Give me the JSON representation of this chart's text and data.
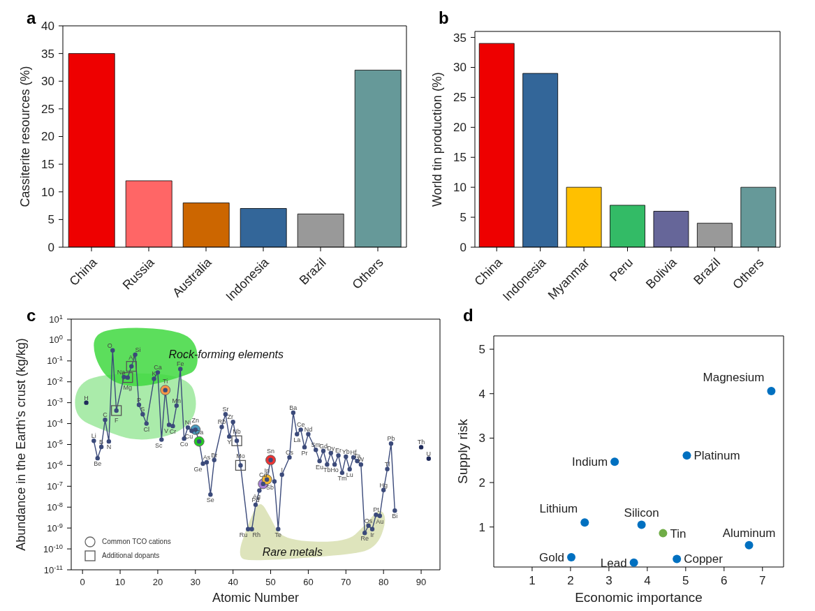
{
  "chart_data": [
    {
      "type": "bar",
      "title": "a",
      "ylabel": "Cassiterite resources (%)",
      "categories": [
        "China",
        "Russia",
        "Australia",
        "Indonesia",
        "Brazil",
        "Others"
      ],
      "values": [
        35,
        12,
        8,
        7,
        6,
        32
      ],
      "colors": [
        "#ee0000",
        "#ff6666",
        "#cc6600",
        "#336699",
        "#999999",
        "#669999"
      ],
      "ylim": [
        0,
        40
      ],
      "yticks": [
        0,
        5,
        10,
        15,
        20,
        25,
        30,
        35,
        40
      ]
    },
    {
      "type": "bar",
      "title": "b",
      "ylabel": "World tin production (%)",
      "categories": [
        "China",
        "Indonesia",
        "Myanmar",
        "Peru",
        "Bolivia",
        "Brazil",
        "Others"
      ],
      "values": [
        34,
        29,
        10,
        7,
        6,
        4,
        10
      ],
      "colors": [
        "#ee0000",
        "#336699",
        "#ffc000",
        "#33bb66",
        "#666699",
        "#999999",
        "#669999"
      ],
      "ylim": [
        0,
        36
      ],
      "yticks": [
        0,
        5,
        10,
        15,
        20,
        25,
        30,
        35
      ]
    },
    {
      "type": "line",
      "title": "c",
      "xlabel": "Atomic Number",
      "ylabel": "Abundance in the Earth's crust (kg/kg)",
      "log": true,
      "legend": "bottom left",
      "xlim": [
        -3,
        95
      ],
      "xticks": [
        0,
        10,
        20,
        30,
        40,
        50,
        60,
        70,
        80,
        90
      ],
      "ylim": [
        1e-11,
        10
      ],
      "yticks": [
        {
          "value": 10,
          "label": "10$^{1}$"
        },
        {
          "value": 1,
          "label": "10$^{0}$"
        },
        {
          "value": 0.1,
          "label": "10$^{-1}$"
        },
        {
          "value": 0.01,
          "label": "10$^{-2}$"
        },
        {
          "value": 0.001,
          "label": "10$^{-3}$"
        },
        {
          "value": 0.0001,
          "label": "10$^{-4}$"
        },
        {
          "value": 1e-05,
          "label": "10$^{-5}$"
        },
        {
          "value": 1e-06,
          "label": "10$^{-6}$"
        },
        {
          "value": 1e-07,
          "label": "10$^{-7}$"
        },
        {
          "value": 1e-08,
          "label": "10$^{-8}$"
        },
        {
          "value": 1e-09,
          "label": "10$^{-9}$"
        },
        {
          "value": 1e-10,
          "label": "10$^{-10}$"
        },
        {
          "value": 1e-11,
          "label": "10$^{-11}$"
        }
      ],
      "series": [
        {
          "color": "#3b4a7a",
          "marker": "circle",
          "x": [
            3,
            4,
            5,
            6,
            7,
            8,
            9,
            11,
            12,
            13,
            14,
            15,
            16,
            17,
            19,
            20,
            21,
            22,
            23,
            24,
            25,
            26,
            27,
            28,
            29,
            30,
            31,
            32,
            33,
            34,
            35,
            37,
            38,
            39,
            40,
            41,
            42,
            44,
            45,
            46,
            47,
            48,
            49,
            50,
            51,
            52,
            53,
            55,
            56,
            57,
            58,
            59,
            60,
            62,
            63,
            64,
            65,
            66,
            67,
            68,
            69,
            70,
            71,
            72,
            73,
            74,
            75,
            76,
            77,
            78,
            79,
            80,
            81,
            82,
            83
          ],
          "values": [
            1.5e-05,
            2.2e-06,
            7.6e-06,
            0.00015,
            1.4e-05,
            0.32,
            0.00042,
            0.017,
            0.016,
            0.055,
            0.2,
            0.00079,
            0.00028,
            0.0001,
            0.014,
            0.028,
            1.7e-05,
            0.004,
            8.7e-05,
            7.6e-05,
            0.00072,
            0.041,
            1.9e-05,
            6.5e-05,
            4.5e-05,
            5.1e-05,
            1.4e-05,
            1.2e-06,
            1.4e-06,
            4e-08,
            1.8e-06,
            6.9e-05,
            0.00028,
            2.4e-05,
            0.00012,
            1.5e-05,
            1e-06,
            8.9e-10,
            8.9e-10,
            1.3e-08,
            6.2e-08,
            1.3e-07,
            2.1e-07,
            1.8e-06,
            1.7e-07,
            8.9e-10,
            3.6e-07,
            2.4e-06,
            0.00033,
            3.1e-05,
            5.1e-05,
            7.4e-06,
            3.1e-05,
            5.5e-06,
            1.6e-06,
            4.9e-06,
            1.1e-06,
            3.9e-06,
            1.1e-06,
            3e-06,
            4.4e-07,
            2.6e-06,
            6.5e-07,
            2.4e-06,
            1.6e-06,
            1.1e-06,
            5.8e-10,
            1.3e-09,
            8.9e-10,
            4.3e-09,
            3.8e-09,
            6.6e-08,
            6.6e-07,
            1.1e-05,
            6.8e-09
          ]
        },
        {
          "type": "scatter",
          "color": "#1f2a5a",
          "marker": "circle",
          "x": [
            1,
            90,
            92
          ],
          "values": [
            0.001,
            7.4e-06,
            2.1e-06
          ]
        },
        {
          "type": "scatter",
          "name": "Common TCO cations",
          "color": "#666666",
          "marker": "circle",
          "x": [
            22,
            30,
            31,
            48,
            49,
            50
          ],
          "values": [
            0.004,
            5.1e-05,
            1.4e-05,
            1.3e-07,
            2.1e-07,
            1.8e-06
          ],
          "colors": [
            "#f79646",
            "#4a9bbf",
            "#22cc22",
            "#a57fd6",
            "#f5b82e",
            "#ee3333"
          ]
        },
        {
          "type": "scatter",
          "name": "Additional dopants",
          "color": "#555555",
          "marker": "square",
          "x": [
            9,
            12,
            13,
            41,
            42
          ],
          "values": [
            0.00042,
            0.016,
            0.055,
            1.5e-05,
            1e-06
          ]
        }
      ],
      "annotations": [
        "Rock-forming elements",
        "Rare metals",
        {
          "text": "H",
          "x": 1,
          "y": 0.001
        },
        {
          "text": "Li",
          "x": 3,
          "y": 1.5e-05
        },
        {
          "text": "Be",
          "x": 4,
          "y": 2.2e-06
        },
        {
          "text": "B",
          "x": 5,
          "y": 7.6e-06
        },
        {
          "text": "C",
          "x": 6,
          "y": 0.00015
        },
        {
          "text": "N",
          "x": 7,
          "y": 1.4e-05
        },
        {
          "text": "O",
          "x": 8,
          "y": 0.32
        },
        {
          "text": "F",
          "x": 9,
          "y": 0.00042
        },
        {
          "text": "Na",
          "x": 11,
          "y": 0.017
        },
        {
          "text": "Mg",
          "x": 12,
          "y": 0.016
        },
        {
          "text": "Al",
          "x": 13,
          "y": 0.055
        },
        {
          "text": "Si",
          "x": 14,
          "y": 0.2
        },
        {
          "text": "P",
          "x": 15,
          "y": 0.00079
        },
        {
          "text": "S",
          "x": 16,
          "y": 0.00028
        },
        {
          "text": "Cl",
          "x": 17,
          "y": 0.0001
        },
        {
          "text": "K",
          "x": 19,
          "y": 0.014
        },
        {
          "text": "Ca",
          "x": 20,
          "y": 0.028
        },
        {
          "text": "Sc",
          "x": 21,
          "y": 1.7e-05
        },
        {
          "text": "Ti",
          "x": 22,
          "y": 0.004
        },
        {
          "text": "V",
          "x": 23,
          "y": 8.7e-05
        },
        {
          "text": "Cr",
          "x": 24,
          "y": 7.6e-05
        },
        {
          "text": "Mn",
          "x": 25,
          "y": 0.00072
        },
        {
          "text": "Fe",
          "x": 26,
          "y": 0.041
        },
        {
          "text": "Co",
          "x": 27,
          "y": 1.9e-05
        },
        {
          "text": "Ni",
          "x": 28,
          "y": 6.5e-05
        },
        {
          "text": "Cu",
          "x": 29,
          "y": 4.5e-05
        },
        {
          "text": "Zn",
          "x": 30,
          "y": 5.1e-05
        },
        {
          "text": "Ga",
          "x": 31,
          "y": 1.4e-05
        },
        {
          "text": "Ge",
          "x": 32,
          "y": 1.2e-06
        },
        {
          "text": "As",
          "x": 33,
          "y": 1.4e-06
        },
        {
          "text": "Se",
          "x": 34,
          "y": 4e-08
        },
        {
          "text": "Br",
          "x": 35,
          "y": 1.8e-06
        },
        {
          "text": "Rb",
          "x": 37,
          "y": 6.9e-05
        },
        {
          "text": "Sr",
          "x": 38,
          "y": 0.00028
        },
        {
          "text": "Y",
          "x": 39,
          "y": 2.4e-05
        },
        {
          "text": "Zr",
          "x": 40,
          "y": 0.00012
        },
        {
          "text": "Nb",
          "x": 41,
          "y": 1.5e-05
        },
        {
          "text": "Mo",
          "x": 42,
          "y": 1e-06
        },
        {
          "text": "Ru",
          "x": 44,
          "y": 8.9e-10
        },
        {
          "text": "Rh",
          "x": 45,
          "y": 8.9e-10
        },
        {
          "text": "Pd",
          "x": 46,
          "y": 1.3e-08
        },
        {
          "text": "Ag",
          "x": 47,
          "y": 6.2e-08
        },
        {
          "text": "Cd",
          "x": 48,
          "y": 1.3e-07
        },
        {
          "text": "In",
          "x": 49,
          "y": 2.1e-07
        },
        {
          "text": "Sn",
          "x": 50,
          "y": 1.8e-06
        },
        {
          "text": "Sb",
          "x": 51,
          "y": 1.7e-07
        },
        {
          "text": "Te",
          "x": 52,
          "y": 8.9e-10
        },
        {
          "text": "I",
          "x": 53,
          "y": 3.6e-07
        },
        {
          "text": "Cs",
          "x": 55,
          "y": 2.4e-06
        },
        {
          "text": "Ba",
          "x": 56,
          "y": 0.00033
        },
        {
          "text": "La",
          "x": 57,
          "y": 3.1e-05
        },
        {
          "text": "Ce",
          "x": 58,
          "y": 5.1e-05
        },
        {
          "text": "Pr",
          "x": 59,
          "y": 7.4e-06
        },
        {
          "text": "Nd",
          "x": 60,
          "y": 3.1e-05
        },
        {
          "text": "Sm",
          "x": 62,
          "y": 5.5e-06
        },
        {
          "text": "Eu",
          "x": 63,
          "y": 1.6e-06
        },
        {
          "text": "Gd",
          "x": 64,
          "y": 4.9e-06
        },
        {
          "text": "Tb",
          "x": 65,
          "y": 1.1e-06
        },
        {
          "text": "Dy",
          "x": 66,
          "y": 3.9e-06
        },
        {
          "text": "Ho",
          "x": 67,
          "y": 1.1e-06
        },
        {
          "text": "Er",
          "x": 68,
          "y": 3e-06
        },
        {
          "text": "Tm",
          "x": 69,
          "y": 4.4e-07
        },
        {
          "text": "Yb",
          "x": 70,
          "y": 2.6e-06
        },
        {
          "text": "Lu",
          "x": 71,
          "y": 6.5e-07
        },
        {
          "text": "Hf",
          "x": 72,
          "y": 2.4e-06
        },
        {
          "text": "Ta",
          "x": 73,
          "y": 1.6e-06
        },
        {
          "text": "W",
          "x": 74,
          "y": 1.1e-06
        },
        {
          "text": "Re",
          "x": 75,
          "y": 5.8e-10
        },
        {
          "text": "Os",
          "x": 76,
          "y": 1.3e-09
        },
        {
          "text": "Ir",
          "x": 77,
          "y": 8.9e-10
        },
        {
          "text": "Pt",
          "x": 78,
          "y": 4.3e-09
        },
        {
          "text": "Au",
          "x": 79,
          "y": 3.8e-09
        },
        {
          "text": "Hg",
          "x": 80,
          "y": 6.6e-08
        },
        {
          "text": "Tl",
          "x": 81,
          "y": 6.6e-07
        },
        {
          "text": "Pb",
          "x": 82,
          "y": 1.1e-05
        },
        {
          "text": "Bi",
          "x": 83,
          "y": 6.8e-09
        },
        {
          "text": "Th",
          "x": 90,
          "y": 7.4e-06
        },
        {
          "text": "U",
          "x": 92,
          "y": 2.1e-06
        }
      ]
    },
    {
      "type": "scatter",
      "title": "d",
      "xlabel": "Economic importance",
      "ylabel": "Supply risk",
      "xlim": [
        0,
        7.55
      ],
      "xticks": [
        1,
        2,
        3,
        4,
        5,
        6,
        7
      ],
      "ylim": [
        0.1,
        5.3
      ],
      "yticks": [
        1,
        2,
        3,
        4,
        5
      ],
      "marker": "circle",
      "series": [
        {
          "x": [
            7.23,
            5.03,
            3.15,
            2.37,
            3.85,
            4.41,
            6.65,
            2.02,
            3.65,
            4.77
          ],
          "values": [
            4.06,
            2.61,
            2.47,
            1.1,
            1.05,
            0.86,
            0.59,
            0.32,
            0.2,
            0.28
          ],
          "colors": [
            "#0070c0",
            "#0070c0",
            "#0070c0",
            "#0070c0",
            "#0070c0",
            "#70ad47",
            "#0070c0",
            "#0070c0",
            "#0070c0",
            "#0070c0"
          ]
        }
      ],
      "annotations": [
        {
          "text": "Magnesium",
          "x": 7.23,
          "y": 4.06
        },
        {
          "text": "Platinum",
          "x": 5.03,
          "y": 2.61
        },
        {
          "text": "Indium",
          "x": 3.15,
          "y": 2.47
        },
        {
          "text": "Lithium",
          "x": 2.37,
          "y": 1.1
        },
        {
          "text": "Silicon",
          "x": 3.85,
          "y": 1.05
        },
        {
          "text": "Tin",
          "x": 4.41,
          "y": 0.86
        },
        {
          "text": "Aluminum",
          "x": 6.65,
          "y": 0.59
        },
        {
          "text": "Gold",
          "x": 2.02,
          "y": 0.32
        },
        {
          "text": "Lead",
          "x": 3.65,
          "y": 0.2
        },
        {
          "text": "Copper",
          "x": 4.77,
          "y": 0.28
        }
      ]
    }
  ]
}
